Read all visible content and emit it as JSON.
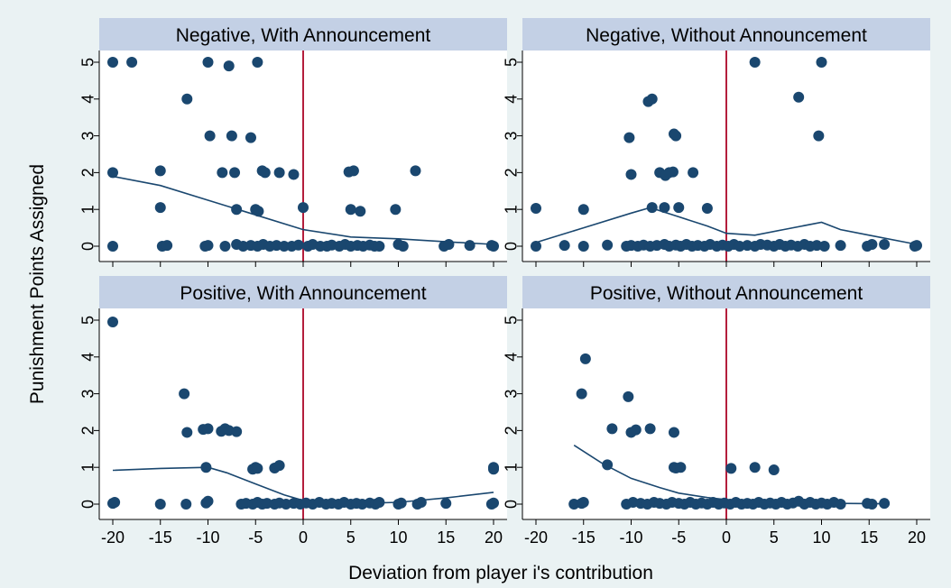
{
  "chart_data": {
    "type": "scatter",
    "ylabel": "Punishment Points Assigned",
    "xlabel": "Deviation from player i's contribution",
    "xlim": [
      -20,
      20
    ],
    "ylim": [
      0,
      5
    ],
    "xticks": [
      -20,
      -15,
      -10,
      -5,
      0,
      5,
      10,
      15,
      20
    ],
    "yticks": [
      0,
      1,
      2,
      3,
      4,
      5
    ],
    "reference_line_x": 0,
    "colors": {
      "background": "#eaf2f3",
      "plot_region": "#ffffff",
      "strip": "#c3d0e5",
      "points": "#1a476f",
      "fit_line": "#1a476f",
      "reference_line": "#b41e3c"
    },
    "panels": [
      {
        "title": "Negative, With Announcement",
        "points": [
          [
            -20,
            5
          ],
          [
            -18,
            5
          ],
          [
            -10,
            5
          ],
          [
            -7.8,
            4.9
          ],
          [
            -4.8,
            5
          ],
          [
            -12.2,
            4
          ],
          [
            -9.8,
            3
          ],
          [
            -7.5,
            3
          ],
          [
            -5.5,
            2.95
          ],
          [
            -20,
            2
          ],
          [
            -15,
            2.05
          ],
          [
            -8.5,
            2
          ],
          [
            -7.2,
            2
          ],
          [
            -4.3,
            2.05
          ],
          [
            -4,
            2
          ],
          [
            -2.5,
            2
          ],
          [
            -1,
            1.95
          ],
          [
            4.8,
            2.02
          ],
          [
            5.3,
            2.05
          ],
          [
            11.8,
            2.05
          ],
          [
            -15,
            1.05
          ],
          [
            -7,
            1
          ],
          [
            -5,
            1
          ],
          [
            -4.7,
            0.95
          ],
          [
            0,
            1.05
          ],
          [
            5,
            1
          ],
          [
            6,
            0.95
          ],
          [
            9.7,
            1
          ],
          [
            -20,
            0
          ],
          [
            -14.8,
            0
          ],
          [
            -14.3,
            0.02
          ],
          [
            -10.3,
            0
          ],
          [
            -10,
            0.02
          ],
          [
            -8.2,
            0
          ],
          [
            -7,
            0.05
          ],
          [
            -6.3,
            0
          ],
          [
            -5.5,
            0.02
          ],
          [
            -4.8,
            0
          ],
          [
            -4.2,
            0.05
          ],
          [
            -3.5,
            0
          ],
          [
            -2.8,
            0.02
          ],
          [
            -2,
            0
          ],
          [
            -1.2,
            0
          ],
          [
            -0.5,
            0.03
          ],
          [
            0.5,
            0
          ],
          [
            1,
            0.05
          ],
          [
            1.8,
            0
          ],
          [
            2.5,
            0
          ],
          [
            3,
            0.03
          ],
          [
            3.8,
            0
          ],
          [
            4.4,
            0.05
          ],
          [
            5,
            0
          ],
          [
            5.7,
            0.02
          ],
          [
            6.3,
            0
          ],
          [
            7,
            0.03
          ],
          [
            7.5,
            0
          ],
          [
            8,
            0
          ],
          [
            10,
            0.05
          ],
          [
            10.5,
            0
          ],
          [
            14.8,
            0
          ],
          [
            15.3,
            0.05
          ],
          [
            17.5,
            0.02
          ],
          [
            20,
            0
          ],
          [
            19.8,
            0.02
          ]
        ],
        "fit": [
          [
            -20,
            1.9
          ],
          [
            -15,
            1.65
          ],
          [
            -10,
            1.25
          ],
          [
            -5,
            0.85
          ],
          [
            0,
            0.45
          ],
          [
            5,
            0.25
          ],
          [
            10,
            0.2
          ],
          [
            15,
            0.12
          ],
          [
            20,
            0.05
          ]
        ]
      },
      {
        "title": "Negative, Without Announcement",
        "points": [
          [
            3,
            5
          ],
          [
            10,
            5
          ],
          [
            7.6,
            4.05
          ],
          [
            -8.2,
            3.93
          ],
          [
            -7.8,
            4
          ],
          [
            -10.2,
            2.95
          ],
          [
            -5.5,
            3.05
          ],
          [
            -5.3,
            3
          ],
          [
            9.7,
            3
          ],
          [
            -10,
            1.95
          ],
          [
            -7,
            2
          ],
          [
            -6.4,
            1.92
          ],
          [
            -5.6,
            2.02
          ],
          [
            -6,
            2
          ],
          [
            -3.5,
            2
          ],
          [
            -20,
            1.03
          ],
          [
            -15,
            1
          ],
          [
            -7.8,
            1.05
          ],
          [
            -6.5,
            1.05
          ],
          [
            -5,
            1.05
          ],
          [
            -2,
            1.03
          ],
          [
            -20,
            0
          ],
          [
            -17,
            0.02
          ],
          [
            -15,
            0
          ],
          [
            -12.5,
            0.03
          ],
          [
            -10.5,
            0
          ],
          [
            -10,
            0.02
          ],
          [
            -9.3,
            0
          ],
          [
            -8.7,
            0.03
          ],
          [
            -8,
            0
          ],
          [
            -7.3,
            0.02
          ],
          [
            -6.5,
            0.05
          ],
          [
            -6,
            0
          ],
          [
            -5.3,
            0.03
          ],
          [
            -4.8,
            0
          ],
          [
            -4.2,
            0.05
          ],
          [
            -3.6,
            0
          ],
          [
            -3,
            0.02
          ],
          [
            -2.3,
            0
          ],
          [
            -1.7,
            0.05
          ],
          [
            -1,
            0
          ],
          [
            -0.4,
            0.03
          ],
          [
            0.2,
            0
          ],
          [
            0.8,
            0.05
          ],
          [
            1.4,
            0
          ],
          [
            2.2,
            0.02
          ],
          [
            3,
            0
          ],
          [
            3.6,
            0.05
          ],
          [
            4.3,
            0.03
          ],
          [
            5,
            0
          ],
          [
            5.6,
            0.05
          ],
          [
            6.2,
            0
          ],
          [
            6.8,
            0.03
          ],
          [
            7.5,
            0
          ],
          [
            8.2,
            0.05
          ],
          [
            8.8,
            0
          ],
          [
            9.5,
            0.02
          ],
          [
            10.3,
            0
          ],
          [
            12,
            0.02
          ],
          [
            14.8,
            0
          ],
          [
            15.3,
            0.05
          ],
          [
            16.6,
            0.05
          ],
          [
            19.8,
            0
          ],
          [
            20,
            0.02
          ]
        ],
        "fit": [
          [
            -20,
            0.1
          ],
          [
            -15,
            0.5
          ],
          [
            -10,
            0.9
          ],
          [
            -8,
            1.05
          ],
          [
            -5,
            0.8
          ],
          [
            -2,
            0.55
          ],
          [
            0,
            0.35
          ],
          [
            3,
            0.3
          ],
          [
            6,
            0.45
          ],
          [
            10,
            0.65
          ],
          [
            12,
            0.45
          ],
          [
            15,
            0.3
          ],
          [
            20,
            0.05
          ]
        ]
      },
      {
        "title": "Positive, With Announcement",
        "points": [
          [
            -20,
            4.95
          ],
          [
            -12.5,
            3
          ],
          [
            -12.2,
            1.95
          ],
          [
            -10.5,
            2.03
          ],
          [
            -10,
            2.05
          ],
          [
            -8.6,
            1.98
          ],
          [
            -8.2,
            2.05
          ],
          [
            -7.8,
            2
          ],
          [
            -7,
            1.97
          ],
          [
            -10.2,
            1
          ],
          [
            -5.3,
            0.95
          ],
          [
            -5,
            1
          ],
          [
            -4.8,
            0.97
          ],
          [
            -3,
            0.98
          ],
          [
            -2.5,
            1.05
          ],
          [
            20,
            1
          ],
          [
            20,
            0.95
          ],
          [
            -20,
            0.02
          ],
          [
            -19.8,
            0.05
          ],
          [
            -15,
            0
          ],
          [
            -12.3,
            0
          ],
          [
            -10.2,
            0.03
          ],
          [
            -10,
            0.08
          ],
          [
            -6.5,
            0
          ],
          [
            -6,
            0.02
          ],
          [
            -5.3,
            0
          ],
          [
            -4.8,
            0.05
          ],
          [
            -4.3,
            0
          ],
          [
            -3.8,
            0.02
          ],
          [
            -3,
            0
          ],
          [
            -2.5,
            0.03
          ],
          [
            -1.8,
            0
          ],
          [
            -1,
            0.02
          ],
          [
            -0.3,
            0
          ],
          [
            0.3,
            0.03
          ],
          [
            1,
            0
          ],
          [
            1.7,
            0.05
          ],
          [
            2.4,
            0
          ],
          [
            3,
            0.02
          ],
          [
            3.7,
            0
          ],
          [
            4.3,
            0.05
          ],
          [
            5,
            0
          ],
          [
            5.6,
            0.02
          ],
          [
            6.2,
            0
          ],
          [
            7,
            0.03
          ],
          [
            7.6,
            0
          ],
          [
            8,
            0.05
          ],
          [
            10,
            0
          ],
          [
            10.3,
            0.03
          ],
          [
            12,
            0
          ],
          [
            12.4,
            0.05
          ],
          [
            15,
            0.02
          ],
          [
            19.8,
            0
          ],
          [
            20,
            0.03
          ]
        ],
        "fit": [
          [
            -20,
            0.92
          ],
          [
            -15,
            0.97
          ],
          [
            -10,
            1
          ],
          [
            -8,
            0.85
          ],
          [
            -5,
            0.55
          ],
          [
            -2,
            0.25
          ],
          [
            0,
            0.1
          ],
          [
            3,
            0.03
          ],
          [
            6,
            0.02
          ],
          [
            10,
            0.05
          ],
          [
            15,
            0.17
          ],
          [
            20,
            0.32
          ]
        ]
      },
      {
        "title": "Positive, Without Announcement",
        "points": [
          [
            -14.8,
            3.95
          ],
          [
            -15.2,
            3
          ],
          [
            -10.3,
            2.92
          ],
          [
            -12,
            2.05
          ],
          [
            -10,
            1.95
          ],
          [
            -9.5,
            2.02
          ],
          [
            -8,
            2.05
          ],
          [
            -5.5,
            1.95
          ],
          [
            -12.5,
            1.07
          ],
          [
            -5.5,
            1
          ],
          [
            -5.3,
            0.98
          ],
          [
            -4.8,
            1
          ],
          [
            0.5,
            0.97
          ],
          [
            3,
            1
          ],
          [
            5,
            0.93
          ],
          [
            -16,
            0
          ],
          [
            -15.2,
            0.02
          ],
          [
            -15,
            0.05
          ],
          [
            -10.5,
            0
          ],
          [
            -9.8,
            0.05
          ],
          [
            -9,
            0.02
          ],
          [
            -8.3,
            0
          ],
          [
            -7.6,
            0.05
          ],
          [
            -7,
            0.02
          ],
          [
            -6.3,
            0
          ],
          [
            -5.7,
            0.05
          ],
          [
            -5,
            0.02
          ],
          [
            -4.4,
            0
          ],
          [
            -3.8,
            0.05
          ],
          [
            -3.2,
            0
          ],
          [
            -2.6,
            0.03
          ],
          [
            -2,
            0
          ],
          [
            -1.4,
            0.05
          ],
          [
            -0.8,
            0
          ],
          [
            -0.2,
            0.03
          ],
          [
            0.4,
            0
          ],
          [
            1,
            0.05
          ],
          [
            1.6,
            0
          ],
          [
            2.2,
            0.02
          ],
          [
            2.8,
            0
          ],
          [
            3.4,
            0.05
          ],
          [
            4,
            0
          ],
          [
            4.6,
            0.03
          ],
          [
            5.2,
            0
          ],
          [
            5.8,
            0.05
          ],
          [
            6.4,
            0
          ],
          [
            7,
            0.03
          ],
          [
            7.6,
            0.08
          ],
          [
            8.2,
            0
          ],
          [
            8.8,
            0.05
          ],
          [
            9.4,
            0
          ],
          [
            10,
            0.03
          ],
          [
            10.6,
            0
          ],
          [
            11.3,
            0.05
          ],
          [
            12,
            0
          ],
          [
            14.8,
            0.02
          ],
          [
            15.3,
            0
          ],
          [
            16.6,
            0.02
          ]
        ],
        "fit": [
          [
            -16,
            1.6
          ],
          [
            -13,
            1.1
          ],
          [
            -10,
            0.7
          ],
          [
            -7,
            0.45
          ],
          [
            -5,
            0.3
          ],
          [
            -2,
            0.18
          ],
          [
            0,
            0.12
          ],
          [
            3,
            0.08
          ],
          [
            7,
            0.04
          ],
          [
            12,
            0.02
          ],
          [
            16.5,
            0.01
          ]
        ]
      }
    ]
  }
}
